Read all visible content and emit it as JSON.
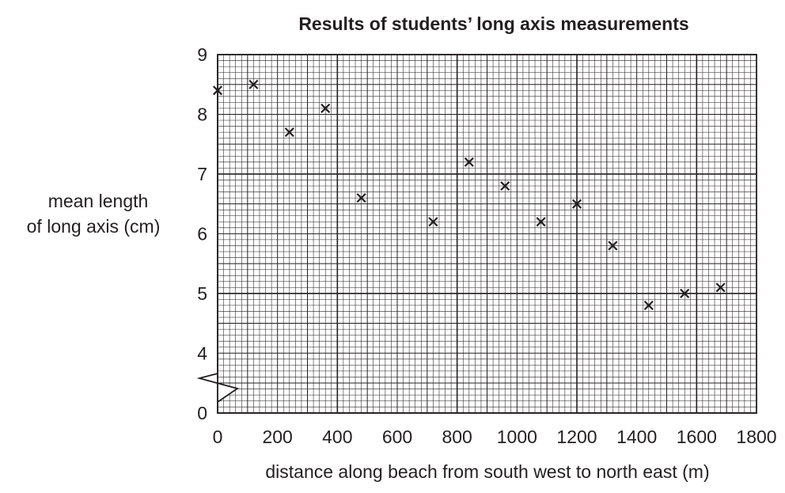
{
  "chart_data": {
    "type": "scatter",
    "title": "Results of students’ long axis measurements",
    "xlabel": "distance along beach from south west to north east (m)",
    "ylabel": [
      "mean length",
      "of long axis (cm)"
    ],
    "xlim": [
      0,
      1800
    ],
    "ylim": [
      0,
      9
    ],
    "x_ticks": [
      0,
      200,
      400,
      600,
      800,
      1000,
      1200,
      1400,
      1600,
      1800
    ],
    "y_ticks": [
      0,
      4,
      5,
      6,
      7,
      8,
      9
    ],
    "y_axis_break": [
      0,
      3.5
    ],
    "grid": true,
    "marker": "cross",
    "points": [
      {
        "x": 0,
        "y": 8.4
      },
      {
        "x": 120,
        "y": 8.5
      },
      {
        "x": 240,
        "y": 7.7
      },
      {
        "x": 360,
        "y": 8.1
      },
      {
        "x": 480,
        "y": 6.6
      },
      {
        "x": 720,
        "y": 6.2
      },
      {
        "x": 840,
        "y": 7.2
      },
      {
        "x": 960,
        "y": 6.8
      },
      {
        "x": 1080,
        "y": 6.2
      },
      {
        "x": 1200,
        "y": 6.5
      },
      {
        "x": 1320,
        "y": 5.8
      },
      {
        "x": 1440,
        "y": 4.8
      },
      {
        "x": 1560,
        "y": 5.0
      },
      {
        "x": 1680,
        "y": 5.1
      }
    ]
  }
}
